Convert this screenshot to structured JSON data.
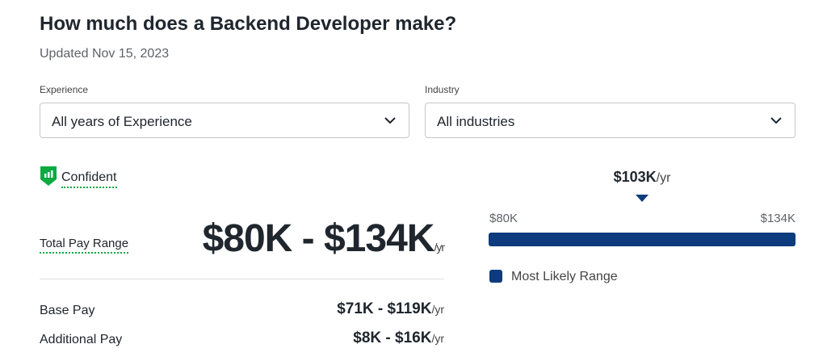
{
  "header": {
    "title": "How much does a Backend Developer make?",
    "updated": "Updated Nov 15, 2023"
  },
  "filters": [
    {
      "label": "Experience",
      "value": "All years of Experience"
    },
    {
      "label": "Industry",
      "value": "All industries"
    }
  ],
  "confidence": "Confident",
  "pay": {
    "label": "Total Pay Range",
    "range": "$80K - $134K",
    "unit": "/yr",
    "rows": [
      {
        "label": "Base Pay",
        "range": "$71K - $119K",
        "unit": "/yr"
      },
      {
        "label": "Additional Pay",
        "range": "$8K - $16K",
        "unit": "/yr"
      }
    ]
  },
  "range_bar": {
    "median": "$103K",
    "median_unit": "/yr",
    "low": "$80K",
    "high": "$134K",
    "legend": "Most Likely Range"
  }
}
